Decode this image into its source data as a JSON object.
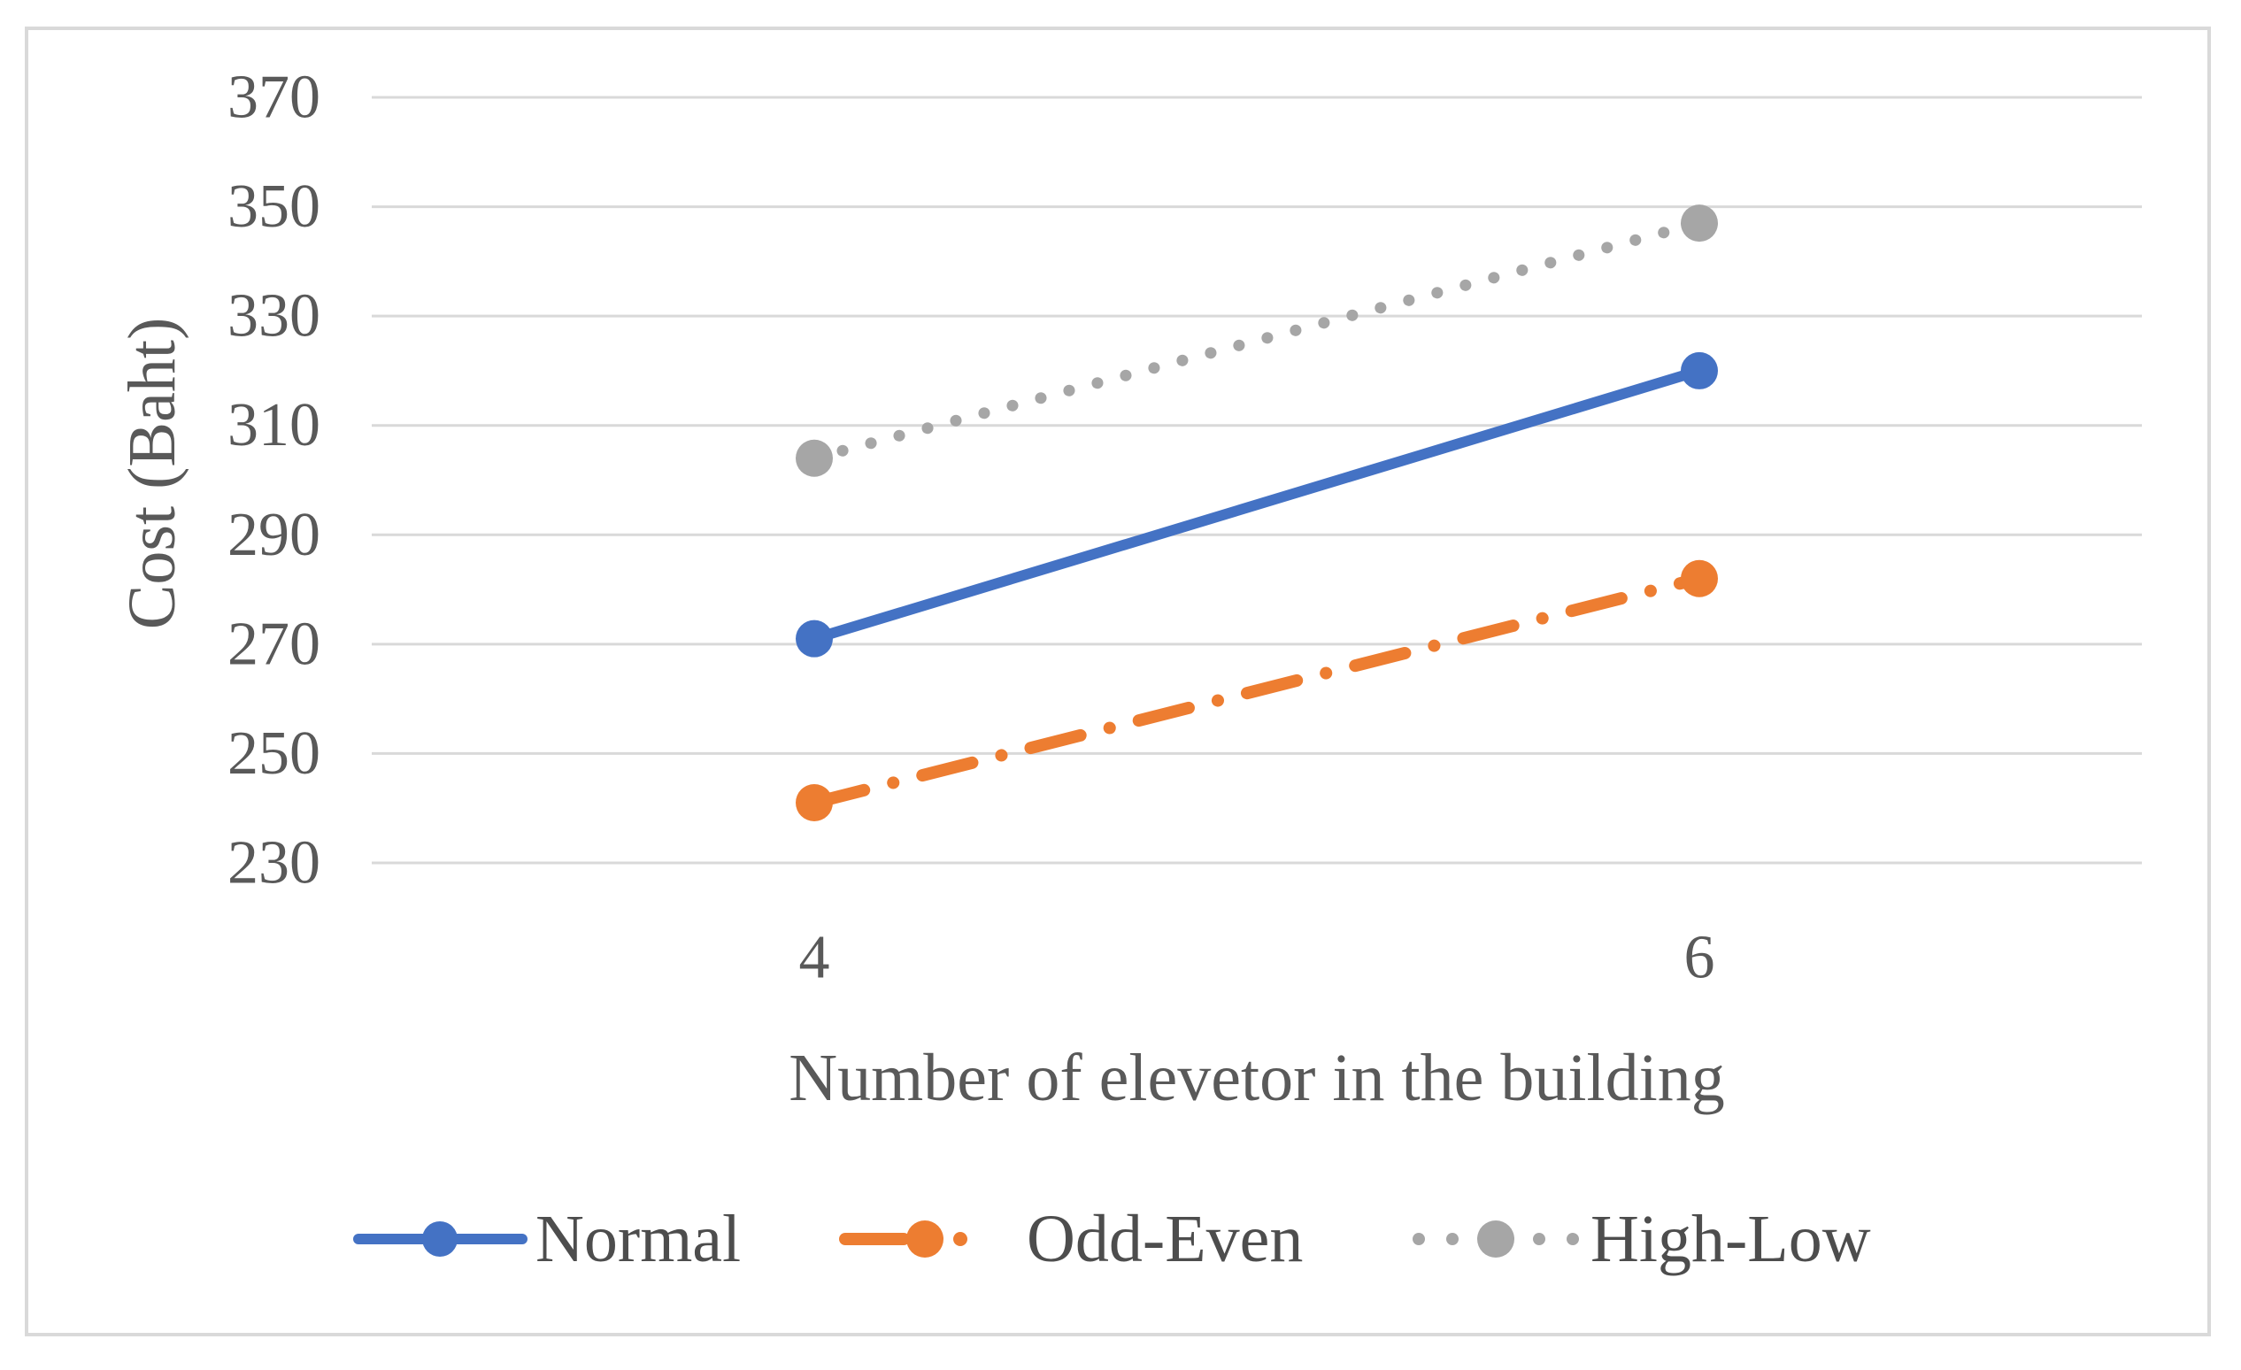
{
  "figure": {
    "background": "#ffffff",
    "border_color": "#d9d9d9"
  },
  "chart_data": {
    "type": "line",
    "title": "",
    "xlabel": "Number of elevetor in the building",
    "ylabel": "Cost (Baht)",
    "categories": [
      4,
      6
    ],
    "x_tick_labels": [
      "4",
      "6"
    ],
    "y_ticks": [
      230,
      250,
      270,
      290,
      310,
      330,
      350,
      370
    ],
    "ylim": [
      230,
      370
    ],
    "grid": "horizontal",
    "gridline_color": "#d9d9d9",
    "text_color": "#595959",
    "legend_position": "bottom",
    "legend_entries": [
      "Normal",
      "Odd-Even",
      "High-Low"
    ],
    "series": [
      {
        "name": "Normal",
        "values": [
          271,
          320
        ],
        "color": "#4472C4",
        "line_style": "solid",
        "marker": "circle"
      },
      {
        "name": "Odd-Even",
        "values": [
          241,
          282
        ],
        "color": "#ED7D31",
        "line_style": "dash-dot",
        "marker": "circle"
      },
      {
        "name": "High-Low",
        "values": [
          304,
          347
        ],
        "color": "#A6A6A6",
        "line_style": "dotted",
        "marker": "circle"
      }
    ]
  }
}
